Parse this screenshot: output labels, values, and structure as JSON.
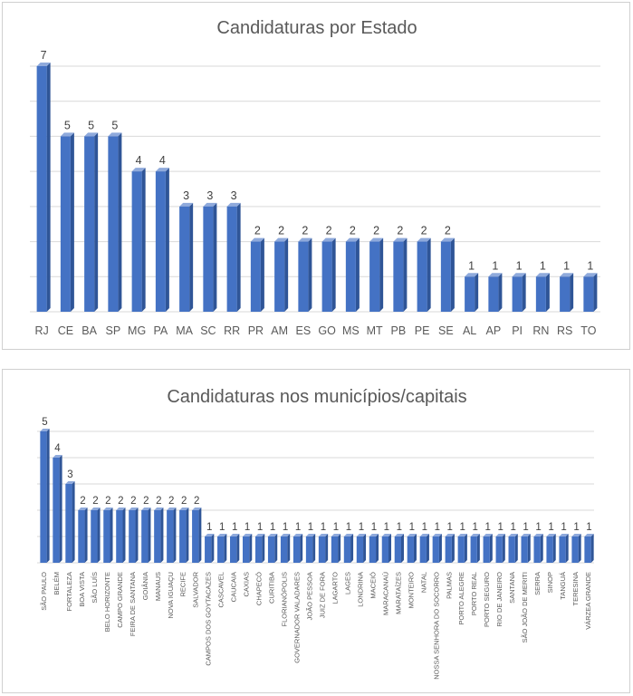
{
  "colors": {
    "bar_front": "#4472c4",
    "bar_side": "#2f5597",
    "bar_top": "#8faadc",
    "grid": "#d9d9d9"
  },
  "chart_data": [
    {
      "type": "bar",
      "title": "Candidaturas por Estado",
      "xlabel": "",
      "ylabel": "",
      "ylim": [
        0,
        7
      ],
      "grid": true,
      "categories": [
        "RJ",
        "CE",
        "BA",
        "SP",
        "MG",
        "PA",
        "MA",
        "SC",
        "RR",
        "PR",
        "AM",
        "ES",
        "GO",
        "MS",
        "MT",
        "PB",
        "PE",
        "SE",
        "AL",
        "AP",
        "PI",
        "RN",
        "RS",
        "TO"
      ],
      "values": [
        7,
        5,
        5,
        5,
        4,
        4,
        3,
        3,
        3,
        2,
        2,
        2,
        2,
        2,
        2,
        2,
        2,
        2,
        1,
        1,
        1,
        1,
        1,
        1
      ]
    },
    {
      "type": "bar",
      "title": "Candidaturas nos municípios/capitais",
      "xlabel": "",
      "ylabel": "",
      "ylim": [
        0,
        5
      ],
      "grid": true,
      "categories": [
        "SÃO PAULO",
        "BELÉM",
        "FORTALEZA",
        "BOA VISTA",
        "SÃO LUÍS",
        "BELO HORIZONTE",
        "CAMPO GRANDE",
        "FEIRA DE SANTANA",
        "GOIÂNIA",
        "MANAUS",
        "NOVA IGUAÇU",
        "RECIFE",
        "SALVADOR",
        "CAMPOS DOS GOYTACAZES",
        "CASCAVEL",
        "CAUCAIA",
        "CAXIAS",
        "CHAPECÓ",
        "CURITIBA",
        "FLORIANÓPOLIS",
        "GOVERNADOR VALADARES",
        "JOÃO PESSOA",
        "JUIZ DE FORA",
        "LAGARTO",
        "LAGES",
        "LONDRINA",
        "MACEIÓ",
        "MARACANAÚ",
        "MARATAÍZES",
        "MONTEIRO",
        "NATAL",
        "NOSSA SENHORA DO SOCORRO",
        "PALMAS",
        "PORTO ALEGRE",
        "PORTO REAL",
        "PORTO SEGURO",
        "RIO DE JANEIRO",
        "SANTANA",
        "SÃO JOÃO DE MERITI",
        "SERRA",
        "SINOP",
        "TANGUÁ",
        "TERESINA",
        "VÁRZEA GRANDE"
      ],
      "values": [
        5,
        4,
        3,
        2,
        2,
        2,
        2,
        2,
        2,
        2,
        2,
        2,
        2,
        1,
        1,
        1,
        1,
        1,
        1,
        1,
        1,
        1,
        1,
        1,
        1,
        1,
        1,
        1,
        1,
        1,
        1,
        1,
        1,
        1,
        1,
        1,
        1,
        1,
        1,
        1,
        1,
        1,
        1,
        1
      ]
    }
  ]
}
